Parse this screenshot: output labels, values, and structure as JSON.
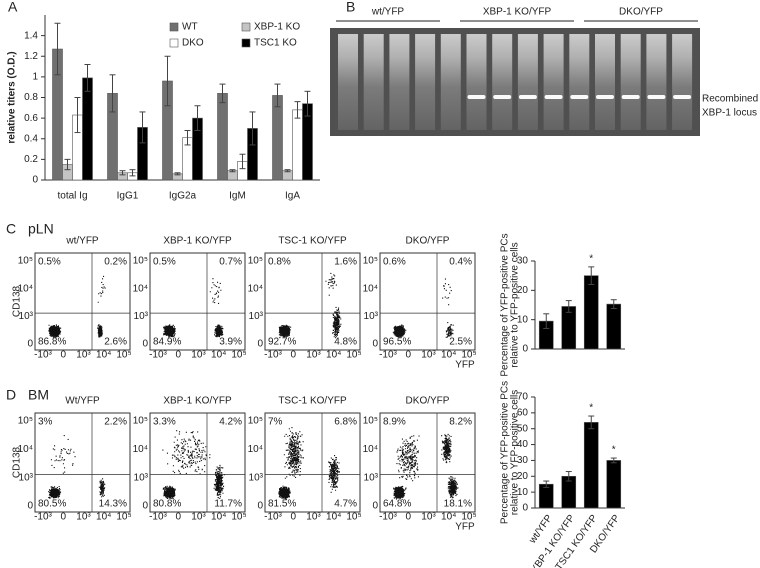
{
  "chart_data": [
    {
      "type": "bar",
      "ylabel": "relative titers (O.D.)",
      "categories": [
        "total Ig",
        "IgG1",
        "IgG2a",
        "IgM",
        "IgA"
      ],
      "series": [
        {
          "name": "WT",
          "color": "#707070",
          "values": [
            1.27,
            0.84,
            0.96,
            0.84,
            0.82
          ],
          "errors": [
            0.25,
            0.18,
            0.24,
            0.09,
            0.11
          ]
        },
        {
          "name": "XBP-1 KO",
          "color": "#c4c4c4",
          "values": [
            0.15,
            0.07,
            0.06,
            0.09,
            0.09
          ],
          "errors": [
            0.05,
            0.02,
            0.01,
            0.01,
            0.01
          ]
        },
        {
          "name": "DKO",
          "color": "#ffffff",
          "values": [
            0.63,
            0.07,
            0.41,
            0.18,
            0.68
          ],
          "errors": [
            0.17,
            0.03,
            0.07,
            0.07,
            0.08
          ]
        },
        {
          "name": "TSC1 KO",
          "color": "#000000",
          "values": [
            0.99,
            0.51,
            0.6,
            0.5,
            0.74
          ],
          "errors": [
            0.13,
            0.15,
            0.12,
            0.16,
            0.12
          ]
        }
      ],
      "ylim": [
        0,
        1.6
      ],
      "yticks": [
        0,
        0.2,
        0.4,
        0.6,
        0.8,
        1,
        1.2,
        1.4
      ],
      "legend": "top-right"
    },
    {
      "type": "bar",
      "ylabel": [
        "Percentage of YFP-positive PCs",
        "relative to YFP-positive cells"
      ],
      "categories": [
        null,
        null,
        null,
        null
      ],
      "values": [
        9.5,
        14.5,
        25,
        15.3
      ],
      "errors": [
        2.5,
        2,
        3,
        1.5
      ],
      "significance": [
        null,
        null,
        "*",
        null
      ],
      "color": "#000000",
      "ylim": [
        0,
        30
      ],
      "yticks": [
        0,
        10,
        20,
        30
      ]
    },
    {
      "type": "bar",
      "ylabel": [
        "Percentage of YFP-positive PCs",
        "relative to YFP-positive cells"
      ],
      "categories": [
        "wt/YFP",
        "XBP-1 KO/YFP",
        "TSC1 KO/YFP",
        "DKO/YFP"
      ],
      "values": [
        15,
        20,
        54,
        30
      ],
      "errors": [
        2,
        3,
        4,
        1.5
      ],
      "significance": [
        null,
        null,
        "*",
        "*"
      ],
      "color": "#000000",
      "ylim": [
        0,
        70
      ],
      "yticks": [
        0,
        10,
        20,
        30,
        40,
        50,
        60,
        70
      ]
    }
  ],
  "figure": {
    "panel_a": "A",
    "panel_b": "B",
    "panel_c": "C",
    "panel_d": "D",
    "gel": {
      "lanes": [
        "wt/YFP",
        "XBP-1 KO/YFP",
        "DKO/YFP"
      ],
      "band_label": [
        "Recombined",
        "XBP-1 locus"
      ]
    },
    "flow_y_label": "CD138",
    "flow_x_label": "YFP",
    "flow_y_ticks": [
      "10⁵",
      "10⁴",
      "10³",
      "0"
    ],
    "flow_x_ticks": [
      "-10³",
      "0",
      "10³",
      "10⁴",
      "10⁵"
    ],
    "pln": {
      "tissue": "pLN",
      "plots": [
        {
          "title": "wt/YFP",
          "quadrants": [
            "0.5%",
            "0.2%",
            "86.8%",
            "2.6%"
          ]
        },
        {
          "title": "XBP-1 KO/YFP",
          "quadrants": [
            "0.5%",
            "0.7%",
            "84.9%",
            "3.9%"
          ]
        },
        {
          "title": "TSC-1 KO/YFP",
          "quadrants": [
            "0.8%",
            "1.6%",
            "92.7%",
            "4.8%"
          ]
        },
        {
          "title": "DKO/YFP",
          "quadrants": [
            "0.6%",
            "0.4%",
            "96.5%",
            "2.5%"
          ]
        }
      ]
    },
    "bm": {
      "tissue": "BM",
      "plots": [
        {
          "title": "Wt/YFP",
          "quadrants": [
            "3%",
            "2.2%",
            "80.5%",
            "14.3%"
          ]
        },
        {
          "title": "XBP-1 KO/YFP",
          "quadrants": [
            "3.3%",
            "4.2%",
            "80.8%",
            "11.7%"
          ]
        },
        {
          "title": "TSC-1 KO/YFP",
          "quadrants": [
            "7%",
            "6.8%",
            "81.5%",
            "4.7%"
          ]
        },
        {
          "title": "DKO/YFP",
          "quadrants": [
            "8.9%",
            "8.2%",
            "64.8%",
            "18.1%"
          ]
        }
      ]
    }
  }
}
